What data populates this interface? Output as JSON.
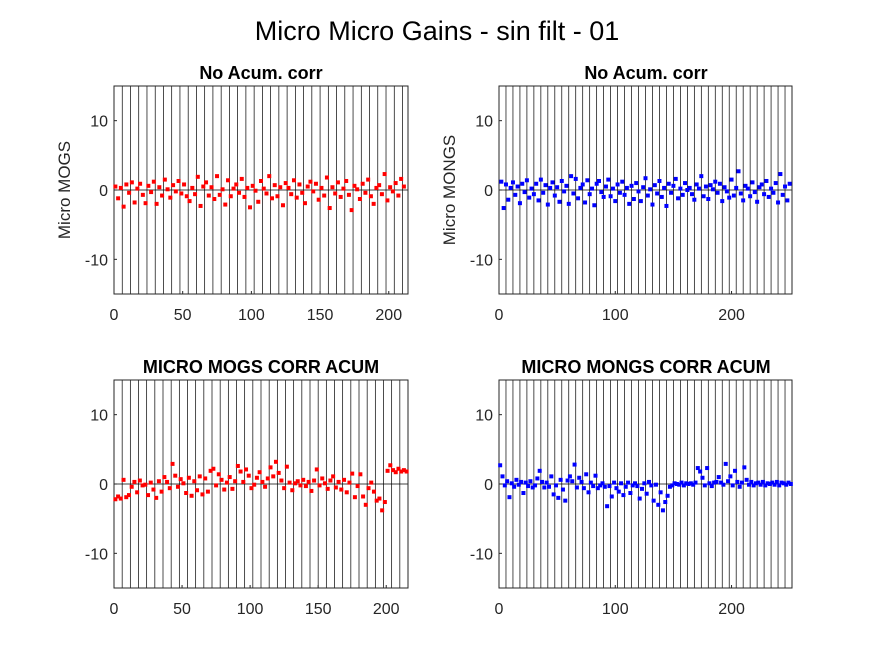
{
  "figure_title": "Micro Micro Gains - sin filt - 01",
  "colors": {
    "mogs": "#ff0000",
    "mongs": "#0000ff",
    "axis": "#262626",
    "vline": "#000000",
    "zero": "#000000"
  },
  "chart_data": [
    {
      "type": "scatter",
      "title": "No Acum. corr",
      "ylabel": "Micro MOGS",
      "xlim": [
        0,
        214
      ],
      "ylim": [
        -15,
        15
      ],
      "xticks": [
        0,
        50,
        100,
        150,
        200
      ],
      "yticks": [
        -10,
        0,
        10
      ],
      "color": "mogs",
      "vlines": [
        6,
        12,
        18,
        24,
        30,
        36,
        42,
        48,
        54,
        60,
        66,
        72,
        78,
        84,
        90,
        96,
        102,
        108,
        114,
        120,
        126,
        132,
        138,
        144,
        150,
        156,
        162,
        168,
        174,
        180,
        186,
        192,
        198,
        204,
        210
      ],
      "series": [
        {
          "x": [
            1,
            3,
            5,
            7,
            9,
            11,
            13,
            15,
            17,
            19,
            21,
            23,
            25,
            27,
            29,
            31,
            33,
            35,
            37,
            39,
            41,
            43,
            45,
            47,
            49,
            51,
            53,
            55,
            57,
            59,
            61,
            63,
            65,
            67,
            69,
            71,
            73,
            75,
            77,
            79,
            81,
            83,
            85,
            87,
            89,
            91,
            93,
            95,
            97,
            99,
            101,
            103,
            105,
            107,
            109,
            111,
            113,
            115,
            117,
            119,
            121,
            123,
            125,
            127,
            129,
            131,
            133,
            135,
            137,
            139,
            141,
            143,
            145,
            147,
            149,
            151,
            153,
            155,
            157,
            159,
            161,
            163,
            165,
            167,
            169,
            171,
            173,
            175,
            177,
            179,
            181,
            183,
            185,
            187,
            189,
            191,
            193,
            195,
            197,
            199,
            201,
            203,
            205,
            207,
            209,
            211
          ],
          "y": [
            0.5,
            -1.2,
            0.3,
            -2.4,
            0.8,
            -0.4,
            1.1,
            -1.8,
            0.2,
            0.9,
            -0.7,
            -1.9,
            0.6,
            -0.3,
            1.2,
            -2.0,
            0.4,
            -0.8,
            1.5,
            0.1,
            -1.1,
            0.7,
            -0.2,
            1.3,
            -0.5,
            0.8,
            -0.9,
            -1.6,
            0.3,
            -0.6,
            1.9,
            -2.3,
            0.5,
            1.1,
            -0.8,
            0.4,
            -1.3,
            2.0,
            -0.7,
            0.1,
            -2.1,
            1.4,
            -0.9,
            0.2,
            0.8,
            -0.4,
            1.6,
            -1.0,
            0.3,
            -2.5,
            0.6,
            -0.1,
            -1.7,
            1.3,
            0.2,
            -0.5,
            2.0,
            -1.2,
            0.7,
            -0.9,
            0.4,
            -2.2,
            1.0,
            0.3,
            -0.6,
            1.4,
            -1.1,
            0.8,
            -0.4,
            -1.9,
            0.5,
            1.2,
            -0.2,
            0.9,
            -1.4,
            0.3,
            -0.8,
            1.8,
            -2.6,
            0.4,
            -0.5,
            1.1,
            -1.0,
            0.2,
            1.3,
            -0.7,
            -2.9,
            0.6,
            0.1,
            -1.3,
            0.9,
            -0.4,
            1.5,
            -0.9,
            -2.0,
            0.3,
            0.7,
            -0.6,
            2.3,
            -1.5,
            0.4,
            -0.2,
            1.0,
            -0.8,
            1.6,
            0.5
          ]
        }
      ]
    },
    {
      "type": "scatter",
      "title": "No Acum. corr",
      "ylabel": "Micro MONGS",
      "xlim": [
        0,
        252
      ],
      "ylim": [
        -15,
        15
      ],
      "xticks": [
        0,
        100,
        200
      ],
      "yticks": [
        -10,
        0,
        10
      ],
      "color": "mongs",
      "vlines": [
        6,
        12,
        18,
        24,
        30,
        36,
        42,
        48,
        54,
        60,
        66,
        72,
        78,
        84,
        90,
        96,
        102,
        108,
        114,
        120,
        126,
        132,
        138,
        144,
        150,
        156,
        162,
        168,
        174,
        180,
        186,
        192,
        198,
        204,
        210,
        216,
        222,
        228,
        234,
        240,
        246
      ],
      "series": [
        {
          "x": [
            2,
            4,
            6,
            8,
            10,
            12,
            14,
            16,
            18,
            20,
            22,
            24,
            26,
            28,
            30,
            32,
            34,
            36,
            38,
            40,
            42,
            44,
            46,
            48,
            50,
            52,
            54,
            56,
            58,
            60,
            62,
            64,
            66,
            68,
            70,
            72,
            74,
            76,
            78,
            80,
            82,
            84,
            86,
            88,
            90,
            92,
            94,
            96,
            98,
            100,
            102,
            104,
            106,
            108,
            110,
            112,
            114,
            116,
            118,
            120,
            122,
            124,
            126,
            128,
            130,
            132,
            134,
            136,
            138,
            140,
            142,
            144,
            146,
            148,
            150,
            152,
            154,
            156,
            158,
            160,
            162,
            164,
            166,
            168,
            170,
            172,
            174,
            176,
            178,
            180,
            182,
            184,
            186,
            188,
            190,
            192,
            194,
            196,
            198,
            200,
            202,
            204,
            206,
            208,
            210,
            212,
            214,
            216,
            218,
            220,
            222,
            224,
            226,
            228,
            230,
            232,
            234,
            236,
            238,
            240,
            242,
            244,
            246,
            248,
            250
          ],
          "y": [
            1.2,
            -2.6,
            0.8,
            -1.4,
            0.3,
            1.1,
            -0.7,
            0.5,
            -1.9,
            0.9,
            -0.3,
            1.4,
            -1.1,
            0.2,
            -0.6,
            0.9,
            -1.5,
            1.5,
            -0.4,
            0.7,
            -2.1,
            0.3,
            1.1,
            -0.8,
            0.4,
            -1.7,
            1.3,
            -0.2,
            0.6,
            -2.0,
            2.0,
            -0.5,
            1.6,
            -1.2,
            0.3,
            0.8,
            -1.8,
            1.4,
            -0.6,
            0.2,
            -2.2,
            0.9,
            1.3,
            -0.3,
            -1.0,
            0.5,
            1.5,
            -0.9,
            0.2,
            -1.6,
            0.8,
            -0.4,
            1.2,
            -0.7,
            0.3,
            -2.0,
            0.6,
            -1.3,
            1.0,
            -0.2,
            -1.6,
            0.4,
            1.7,
            -0.8,
            0.1,
            -2.1,
            0.7,
            -0.5,
            1.3,
            -1.0,
            0.3,
            -2.3,
            0.9,
            -0.4,
            0.6,
            1.6,
            -1.2,
            0.2,
            -0.7,
            1.0,
            0.0,
            0.3,
            -0.6,
            -1.4,
            0.8,
            0.2,
            2.0,
            -0.9,
            0.5,
            -1.3,
            0.7,
            0.1,
            1.2,
            -0.4,
            0.9,
            -1.6,
            0.4,
            -0.2,
            -1.1,
            1.5,
            -0.8,
            0.3,
            2.7,
            -0.5,
            -1.5,
            0.6,
            0.2,
            -0.9,
            1.1,
            -0.3,
            -1.7,
            0.4,
            0.8,
            -0.6,
            1.3,
            -1.0,
            0.2,
            -0.4,
            1.0,
            -1.8,
            2.3,
            -0.7,
            0.5,
            -1.5,
            0.9
          ]
        }
      ]
    },
    {
      "type": "scatter",
      "title": "MICRO MOGS CORR ACUM",
      "ylabel": "",
      "xlim": [
        0,
        216
      ],
      "ylim": [
        -15,
        15
      ],
      "xticks": [
        0,
        50,
        100,
        150,
        200
      ],
      "yticks": [
        -10,
        0,
        10
      ],
      "color": "mogs",
      "vlines": [
        6,
        12,
        18,
        24,
        30,
        36,
        42,
        48,
        54,
        60,
        66,
        72,
        78,
        84,
        90,
        96,
        102,
        108,
        114,
        120,
        126,
        132,
        138,
        144,
        150,
        156,
        162,
        168,
        174,
        180,
        186,
        192,
        198,
        204,
        210
      ],
      "series": [
        {
          "x": [
            1,
            3,
            5,
            7,
            9,
            11,
            13,
            15,
            17,
            19,
            21,
            23,
            25,
            27,
            29,
            31,
            33,
            35,
            37,
            39,
            41,
            43,
            45,
            47,
            49,
            51,
            53,
            55,
            57,
            59,
            61,
            63,
            65,
            67,
            69,
            71,
            73,
            75,
            77,
            79,
            81,
            83,
            85,
            87,
            89,
            91,
            93,
            95,
            97,
            99,
            101,
            103,
            105,
            107,
            109,
            111,
            113,
            115,
            117,
            119,
            121,
            123,
            125,
            127,
            129,
            131,
            133,
            135,
            137,
            139,
            141,
            143,
            145,
            147,
            149,
            151,
            153,
            155,
            157,
            159,
            161,
            163,
            165,
            167,
            169,
            171,
            173,
            175,
            177,
            179,
            181,
            183,
            185,
            187,
            189,
            191,
            193,
            195,
            197,
            199,
            201,
            203,
            205,
            207,
            209,
            211,
            213,
            215
          ],
          "y": [
            -2.2,
            -1.8,
            -2.1,
            0.6,
            -1.9,
            -1.6,
            -0.4,
            0.3,
            -1.2,
            0.5,
            -0.2,
            -0.1,
            -1.6,
            0.2,
            -0.8,
            -2.0,
            0.4,
            -1.1,
            1.0,
            0.3,
            -0.6,
            2.9,
            1.2,
            -0.4,
            0.7,
            0.1,
            -1.3,
            0.9,
            -1.7,
            0.4,
            -0.9,
            1.1,
            -1.5,
            0.8,
            -1.1,
            1.9,
            2.2,
            -0.2,
            1.4,
            0.6,
            -0.8,
            0.2,
            1.0,
            -0.7,
            0.4,
            2.6,
            1.8,
            0.3,
            2.1,
            1.2,
            -0.6,
            -0.1,
            0.9,
            1.7,
            0.3,
            -0.4,
            0.8,
            2.4,
            1.1,
            3.2,
            1.6,
            0.5,
            -0.6,
            2.5,
            0.2,
            -0.9,
            0.1,
            0.4,
            -0.2,
            0.6,
            -0.3,
            0.3,
            -1.0,
            0.5,
            2.1,
            -0.2,
            0.8,
            0.1,
            -0.7,
            0.5,
            1.1,
            -0.5,
            0.3,
            -0.8,
            0.6,
            -1.2,
            0.2,
            1.5,
            -1.9,
            -0.3,
            1.4,
            -1.8,
            -3.0,
            -0.6,
            0.2,
            -1.1,
            -2.4,
            -2.1,
            -3.8,
            -2.6,
            1.9,
            2.7,
            2.0,
            1.7,
            2.2,
            1.8,
            2.0,
            1.8
          ]
        }
      ]
    },
    {
      "type": "scatter",
      "title": "MICRO MONGS CORR ACUM",
      "ylabel": "",
      "xlim": [
        0,
        252
      ],
      "ylim": [
        -15,
        15
      ],
      "xticks": [
        0,
        100,
        200
      ],
      "yticks": [
        -10,
        0,
        10
      ],
      "color": "mongs",
      "vlines": [
        6,
        12,
        18,
        24,
        30,
        36,
        42,
        48,
        54,
        60,
        66,
        72,
        78,
        84,
        90,
        96,
        102,
        108,
        114,
        120,
        126,
        132,
        138,
        144,
        150,
        156,
        162,
        168,
        174,
        180,
        186,
        192,
        198,
        204,
        210,
        216,
        222,
        228,
        234,
        240,
        246
      ],
      "series": [
        {
          "x": [
            1,
            3,
            5,
            7,
            9,
            11,
            13,
            15,
            17,
            19,
            21,
            23,
            25,
            27,
            29,
            31,
            33,
            35,
            37,
            39,
            41,
            43,
            45,
            47,
            49,
            51,
            53,
            55,
            57,
            59,
            61,
            63,
            65,
            67,
            69,
            71,
            73,
            75,
            77,
            79,
            81,
            83,
            85,
            87,
            89,
            91,
            93,
            95,
            97,
            99,
            101,
            103,
            105,
            107,
            109,
            111,
            113,
            115,
            117,
            119,
            121,
            123,
            125,
            127,
            129,
            131,
            133,
            135,
            137,
            139,
            141,
            143,
            145,
            147,
            149,
            151,
            153,
            155,
            157,
            159,
            161,
            163,
            165,
            167,
            169,
            171,
            173,
            175,
            177,
            179,
            181,
            183,
            185,
            187,
            189,
            191,
            193,
            195,
            197,
            199,
            201,
            203,
            205,
            207,
            209,
            211,
            213,
            215,
            217,
            219,
            221,
            223,
            225,
            227,
            229,
            231,
            233,
            235,
            237,
            239,
            241,
            243,
            245,
            247,
            249,
            251
          ],
          "y": [
            2.7,
            1.1,
            -0.2,
            0.4,
            -1.9,
            0.1,
            -0.4,
            0.6,
            -0.1,
            0.3,
            -1.3,
            0.2,
            -0.3,
            0.4,
            -0.5,
            -0.2,
            0.8,
            1.9,
            0.3,
            -0.5,
            0.2,
            -0.4,
            1.1,
            -1.5,
            -0.2,
            -2.0,
            0.6,
            -0.8,
            -2.4,
            0.5,
            1.1,
            0.4,
            2.8,
            -0.5,
            0.9,
            0.3,
            -0.6,
            1.4,
            -1.2,
            0.2,
            -0.3,
            1.2,
            -0.6,
            -0.2,
            0.1,
            -0.4,
            -3.2,
            -0.3,
            -1.8,
            0.2,
            -0.6,
            -1.1,
            0.1,
            -1.6,
            -0.4,
            0.2,
            -1.3,
            -0.2,
            0.1,
            -0.3,
            -2.1,
            -0.7,
            0.1,
            -1.4,
            0.3,
            -0.2,
            -2.4,
            -0.1,
            -3.0,
            -1.2,
            -3.8,
            -2.6,
            -1.7,
            -0.4,
            -0.2,
            0.1,
            0.0,
            -0.1,
            0.2,
            -0.2,
            0.1,
            0.0,
            0.1,
            -0.1,
            0.2,
            2.3,
            1.8,
            0.9,
            -0.2,
            2.3,
            0.1,
            -0.3,
            0.2,
            0.3,
            1.0,
            0.2,
            -0.1,
            2.9,
            0.4,
            1.1,
            -0.2,
            1.9,
            0.3,
            -0.4,
            0.2,
            2.4,
            0.6,
            -0.1,
            0.3,
            -0.2,
            0.1,
            0.2,
            -0.1,
            0.3,
            -0.2,
            0.1,
            0.0,
            0.2,
            -0.1,
            0.3,
            -0.2,
            0.2,
            0.1,
            -0.1,
            0.2,
            0.0
          ]
        }
      ]
    }
  ]
}
